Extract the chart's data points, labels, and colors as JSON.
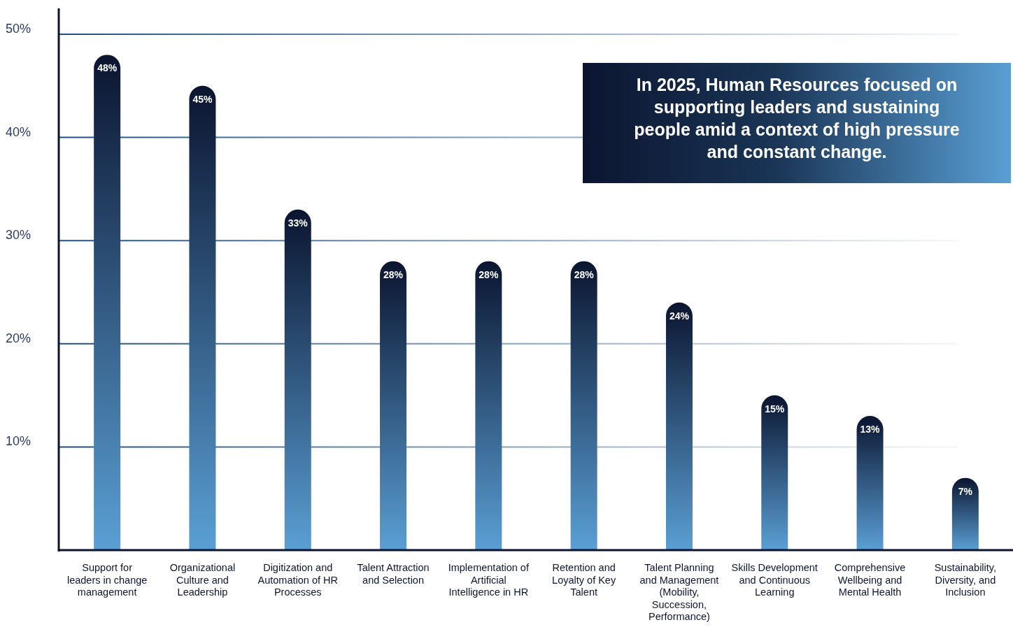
{
  "chart_data": {
    "type": "bar",
    "categories": [
      "Support for leaders in change management",
      "Organizational Culture and Leadership",
      "Digitization and Automation of HR Processes",
      "Talent Attraction and Selection",
      "Implementation of Artificial Intelligence in HR",
      "Retention and Loyalty of Key Talent",
      "Talent Planning and Management (Mobility, Succession, Performance)",
      "Skills Development and Continuous Learning",
      "Comprehensive Wellbeing and Mental Health",
      "Sustainability, Diversity, and Inclusion"
    ],
    "values": [
      48,
      45,
      33,
      28,
      28,
      28,
      24,
      15,
      13,
      7
    ],
    "value_labels": [
      "48%",
      "45%",
      "33%",
      "28%",
      "28%",
      "28%",
      "24%",
      "15%",
      "13%",
      "7%"
    ],
    "color": "#0b1530",
    "ylim": [
      0,
      52.5
    ],
    "yticks": [
      {
        "value": 10,
        "label": "10%"
      },
      {
        "value": 20,
        "label": "20%"
      },
      {
        "value": 30,
        "label": "30%"
      },
      {
        "value": 40,
        "label": "40%"
      },
      {
        "value": 50,
        "label": "50%"
      }
    ],
    "grid": "y",
    "annotations": [
      "In 2025, Human Resources focused on supporting leaders and sustaining people amid a context of high pressure and constant change."
    ]
  }
}
